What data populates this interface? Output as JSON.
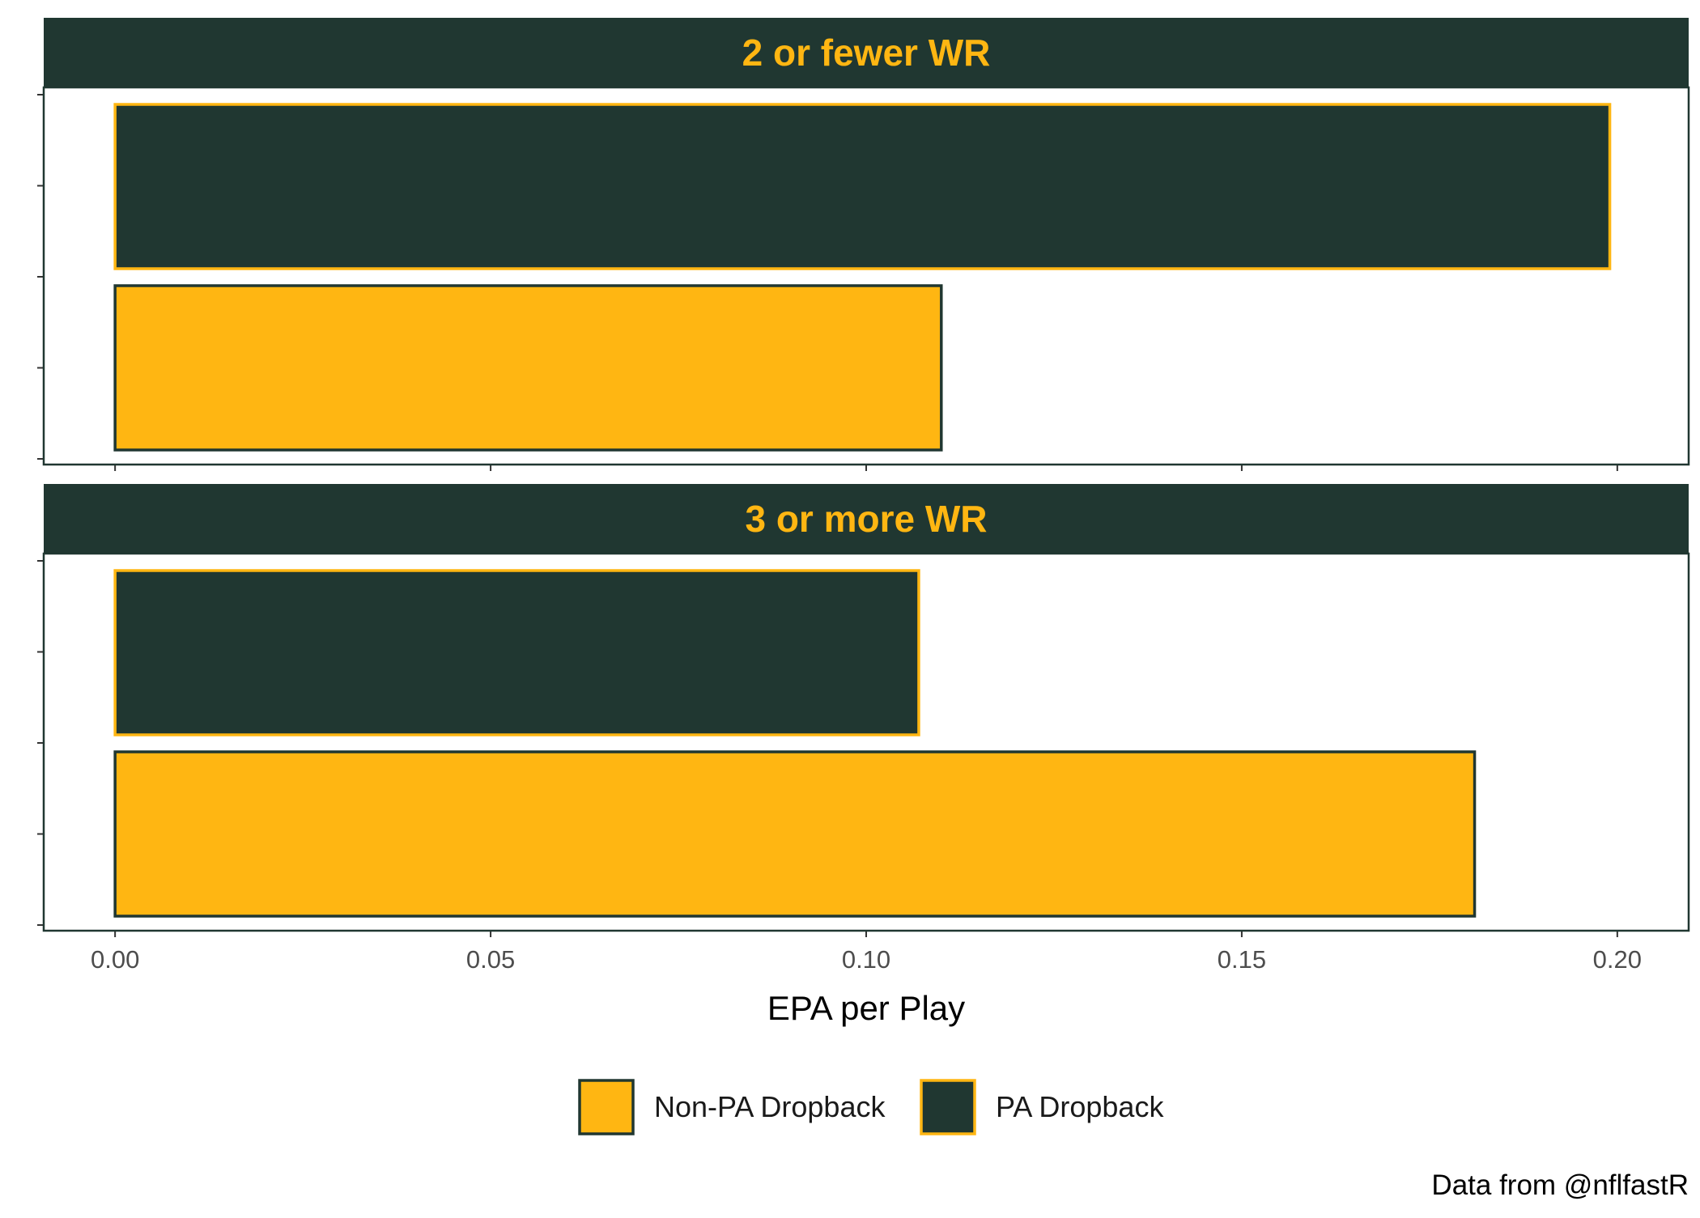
{
  "chart_data": {
    "type": "bar",
    "orientation": "horizontal",
    "facets": [
      {
        "label": "2 or fewer WR",
        "bars": [
          {
            "series": "PA Dropback",
            "value": 0.199
          },
          {
            "series": "Non-PA Dropback",
            "value": 0.11
          }
        ]
      },
      {
        "label": "3 or more WR",
        "bars": [
          {
            "series": "PA Dropback",
            "value": 0.107
          },
          {
            "series": "Non-PA Dropback",
            "value": 0.181
          }
        ]
      }
    ],
    "series": [
      {
        "name": "Non-PA Dropback",
        "fill": "#FFB612",
        "stroke": "#203731"
      },
      {
        "name": "PA Dropback",
        "fill": "#203731",
        "stroke": "#FFB612"
      }
    ],
    "xlabel": "EPA per Play",
    "xlim": [
      -0.0095,
      0.2095
    ],
    "xticks": [
      0.0,
      0.05,
      0.1,
      0.15,
      0.2
    ],
    "xtick_labels": [
      "0.00",
      "0.05",
      "0.10",
      "0.15",
      "0.20"
    ],
    "grid": false,
    "legend_position": "bottom",
    "caption": "Data from @nflfastR"
  },
  "colors": {
    "strip_background": "#203731",
    "strip_text": "#FFB612",
    "panel_border": "#203731"
  }
}
